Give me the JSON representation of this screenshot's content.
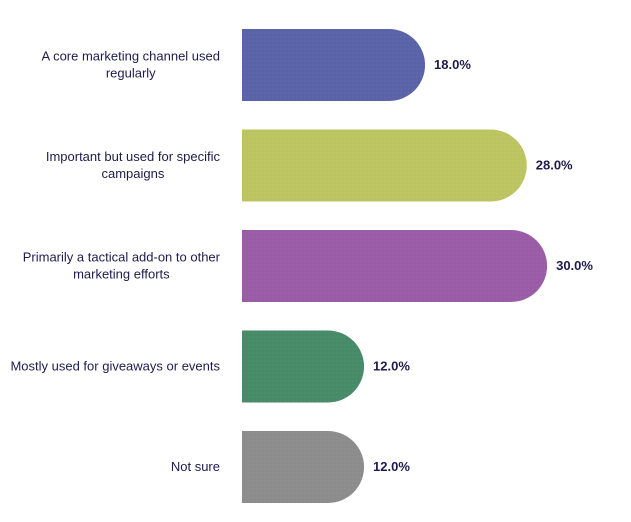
{
  "chart_data": {
    "type": "bar",
    "orientation": "horizontal",
    "title": "",
    "xlabel": "",
    "ylabel": "",
    "categories": [
      [
        "A core marketing channel used",
        "regularly"
      ],
      [
        "Important but used for specific",
        "campaigns"
      ],
      [
        "Primarily a tactical add-on to other",
        "marketing efforts"
      ],
      [
        "Mostly used for giveaways or events"
      ],
      [
        "Not sure"
      ]
    ],
    "values": [
      18.0,
      28.0,
      30.0,
      12.0,
      12.0
    ],
    "value_labels": [
      "18.0%",
      "28.0%",
      "30.0%",
      "12.0%",
      "12.0%"
    ],
    "colors": [
      "#5b63a8",
      "#bcc462",
      "#9a5ca6",
      "#478a68",
      "#8c8c8c"
    ],
    "grid": false,
    "legend": "none",
    "bar_shape": "rounded-end",
    "xlim": [
      0,
      30
    ]
  }
}
